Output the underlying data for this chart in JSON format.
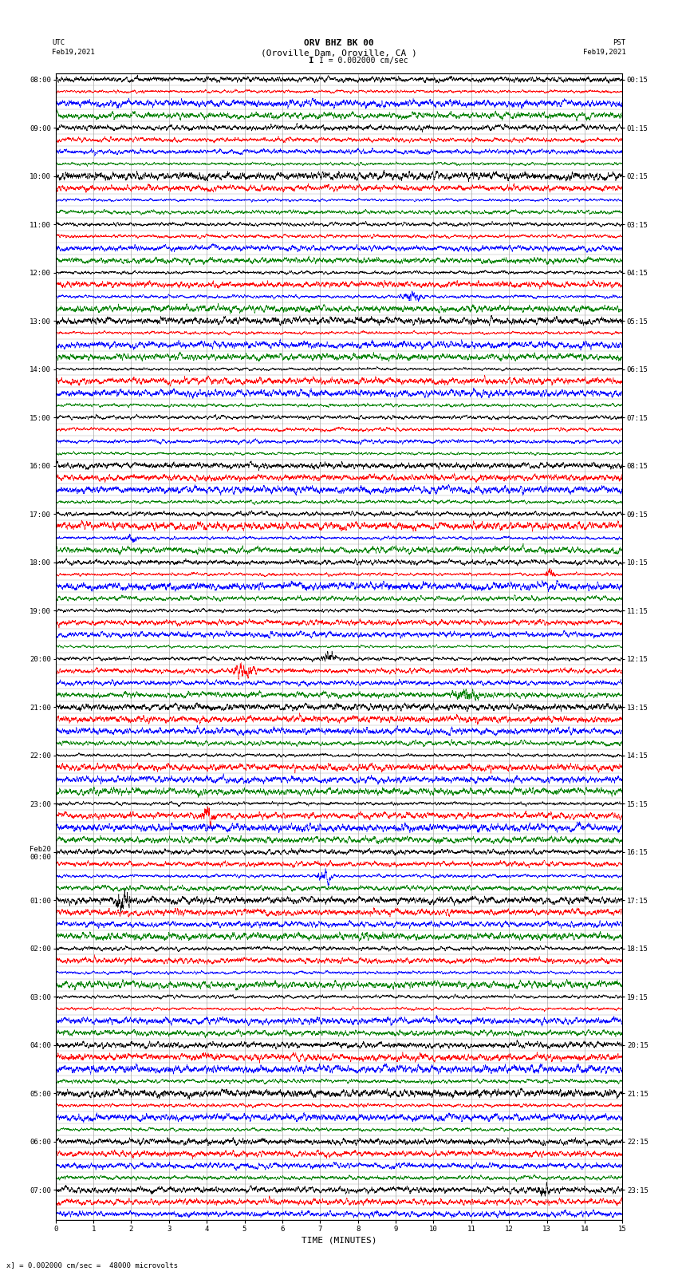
{
  "title_line1": "ORV BHZ BK 00",
  "title_line2": "(Oroville Dam, Oroville, CA )",
  "title_line3": "I = 0.002000 cm/sec",
  "left_header_line1": "UTC",
  "left_header_line2": "Feb19,2021",
  "right_header_line1": "PST",
  "right_header_line2": "Feb19,2021",
  "bottom_label": "TIME (MINUTES)",
  "bottom_note": "x] = 0.002000 cm/sec =  48000 microvolts",
  "utc_times": [
    "08:00",
    "",
    "",
    "",
    "09:00",
    "",
    "",
    "",
    "10:00",
    "",
    "",
    "",
    "11:00",
    "",
    "",
    "",
    "12:00",
    "",
    "",
    "",
    "13:00",
    "",
    "",
    "",
    "14:00",
    "",
    "",
    "",
    "15:00",
    "",
    "",
    "",
    "16:00",
    "",
    "",
    "",
    "17:00",
    "",
    "",
    "",
    "18:00",
    "",
    "",
    "",
    "19:00",
    "",
    "",
    "",
    "20:00",
    "",
    "",
    "",
    "21:00",
    "",
    "",
    "",
    "22:00",
    "",
    "",
    "",
    "23:00",
    "",
    "",
    "",
    "Feb20\n00:00",
    "",
    "",
    "",
    "01:00",
    "",
    "",
    "",
    "02:00",
    "",
    "",
    "",
    "03:00",
    "",
    "",
    "",
    "04:00",
    "",
    "",
    "",
    "05:00",
    "",
    "",
    "",
    "06:00",
    "",
    "",
    "",
    "07:00",
    "",
    ""
  ],
  "pst_times": [
    "00:15",
    "",
    "",
    "",
    "01:15",
    "",
    "",
    "",
    "02:15",
    "",
    "",
    "",
    "03:15",
    "",
    "",
    "",
    "04:15",
    "",
    "",
    "",
    "05:15",
    "",
    "",
    "",
    "06:15",
    "",
    "",
    "",
    "07:15",
    "",
    "",
    "",
    "08:15",
    "",
    "",
    "",
    "09:15",
    "",
    "",
    "",
    "10:15",
    "",
    "",
    "",
    "11:15",
    "",
    "",
    "",
    "12:15",
    "",
    "",
    "",
    "13:15",
    "",
    "",
    "",
    "14:15",
    "",
    "",
    "",
    "15:15",
    "",
    "",
    "",
    "16:15",
    "",
    "",
    "",
    "17:15",
    "",
    "",
    "",
    "18:15",
    "",
    "",
    "",
    "19:15",
    "",
    "",
    "",
    "20:15",
    "",
    "",
    "",
    "21:15",
    "",
    "",
    "",
    "22:15",
    "",
    "",
    "",
    "23:15",
    "",
    ""
  ],
  "n_rows": 95,
  "n_minutes": 15,
  "colors": [
    "black",
    "red",
    "blue",
    "green"
  ],
  "background_color": "white",
  "grid_color": "#999999",
  "xlabel_fontsize": 8,
  "title_fontsize": 8,
  "tick_fontsize": 6.5,
  "seed": 12345
}
